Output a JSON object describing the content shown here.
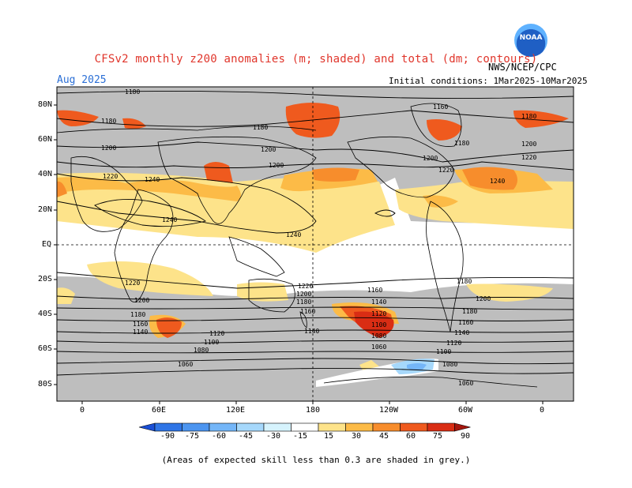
{
  "header": {
    "title": "CFSv2 monthly z200 anomalies (m; shaded) and total (dm; contours)",
    "valid_month": "Aug 2025",
    "initial_conditions": "Initial conditions: 1Mar2025-10Mar2025",
    "agency": "NWS/NCEP/CPC",
    "logo_text": "NOAA"
  },
  "map": {
    "lat_labels": [
      "80N",
      "60N",
      "40N",
      "20N",
      "EQ",
      "20S",
      "40S",
      "60S",
      "80S"
    ],
    "lon_labels": [
      "0",
      "60E",
      "120E",
      "180",
      "120W",
      "60W",
      "0"
    ],
    "contour_labels": [
      "1180",
      "1180",
      "1180",
      "1200",
      "1200",
      "1220",
      "1240",
      "1240",
      "1220",
      "1200",
      "1180",
      "1160",
      "1140",
      "1120",
      "1100",
      "1080",
      "1060",
      "1160",
      "1180",
      "1200",
      "1220",
      "1240",
      "1220",
      "1200",
      "1180",
      "1160",
      "1140",
      "1200",
      "1180",
      "1160",
      "1140",
      "1120",
      "1100",
      "1080",
      "1060",
      "1200",
      "1180",
      "1160",
      "1140",
      "1120",
      "1100",
      "1080",
      "1060",
      "1240",
      "1220",
      "1200",
      "1180"
    ]
  },
  "colorbar": {
    "labels": [
      "-90",
      "-75",
      "-60",
      "-45",
      "-30",
      "-15",
      "15",
      "30",
      "45",
      "60",
      "75",
      "90"
    ],
    "colors": [
      "#1a4fd6",
      "#2f75e6",
      "#4c95f0",
      "#74b6f8",
      "#a6d8fb",
      "#d6f3fd",
      "#ffffff",
      "#fde38a",
      "#fcbb47",
      "#f78d2c",
      "#ef5a1e",
      "#d92d14",
      "#a5160e"
    ]
  },
  "footnote": "(Areas of expected skill less than 0.3 are shaded in grey.)"
}
